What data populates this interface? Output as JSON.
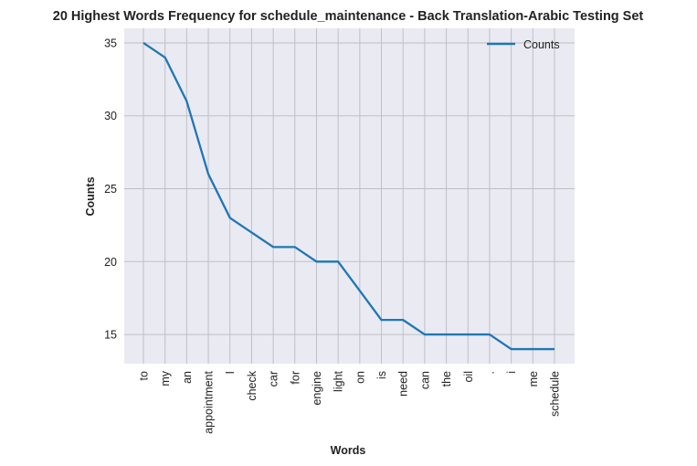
{
  "chart_data": {
    "type": "line",
    "title": "20 Highest Words Frequency for schedule_maintenance - Back Translation-Arabic Testing Set",
    "xlabel": "Words",
    "ylabel": "Counts",
    "categories": [
      "to",
      "my",
      "an",
      "appointment",
      "I",
      "check",
      "car",
      "for",
      "engine",
      "light",
      "on",
      "is",
      "need",
      "can",
      "the",
      "oil",
      ".",
      "i",
      "me",
      "schedule"
    ],
    "series": [
      {
        "name": "Counts",
        "values": [
          35,
          34,
          31,
          26,
          23,
          22,
          21,
          21,
          20,
          20,
          18,
          16,
          16,
          15,
          15,
          15,
          15,
          14,
          14,
          14
        ]
      }
    ],
    "yticks": [
      15,
      20,
      25,
      30,
      35
    ],
    "ylim": [
      13,
      36
    ],
    "grid": true,
    "legend": "upper-right",
    "colors": {
      "line": "#1f77b4",
      "plot_bg": "#eaeaf2",
      "grid": "#bfbfc7"
    }
  }
}
